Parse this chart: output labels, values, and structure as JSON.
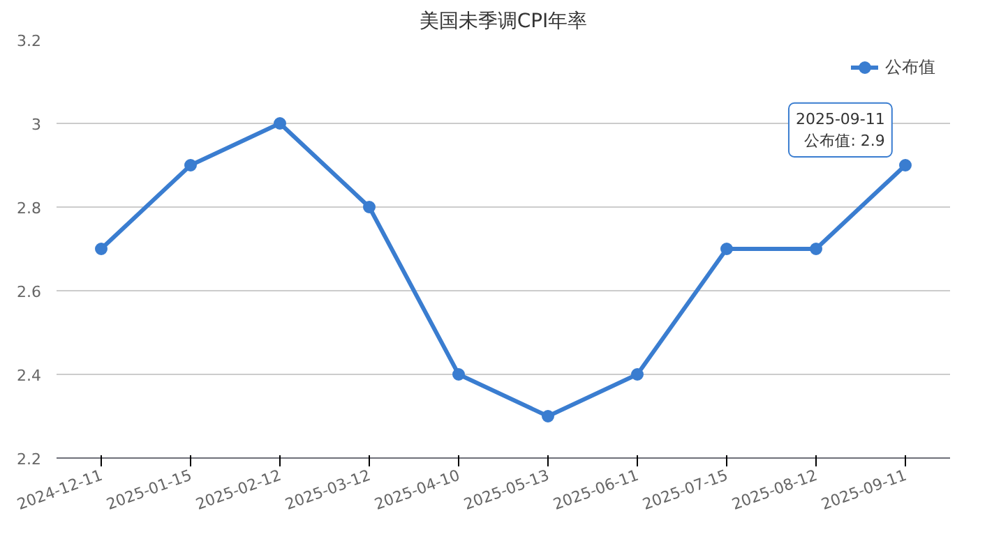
{
  "chart_data": {
    "type": "line",
    "title": "美国未季调CPI年率",
    "categories": [
      "2024-12-11",
      "2025-01-15",
      "2025-02-12",
      "2025-03-12",
      "2025-04-10",
      "2025-05-13",
      "2025-06-11",
      "2025-07-15",
      "2025-08-12",
      "2025-09-11"
    ],
    "series": [
      {
        "name": "公布值",
        "color": "#3a7dd0",
        "values": [
          2.7,
          2.9,
          3,
          2.8,
          2.4,
          2.3,
          2.4,
          2.7,
          2.7,
          2.9
        ]
      }
    ],
    "ylim": [
      2.2,
      3.2
    ],
    "yticks": [
      2.2,
      2.4,
      2.6,
      2.8,
      3,
      3.2
    ],
    "grid": "y",
    "legend": "top right",
    "marker": "circle",
    "line_style": "solid",
    "annotations": [
      {
        "text": "2025-09-11\n公布值: 2.9",
        "x": "2025-09-11",
        "y": 2.9
      }
    ]
  }
}
